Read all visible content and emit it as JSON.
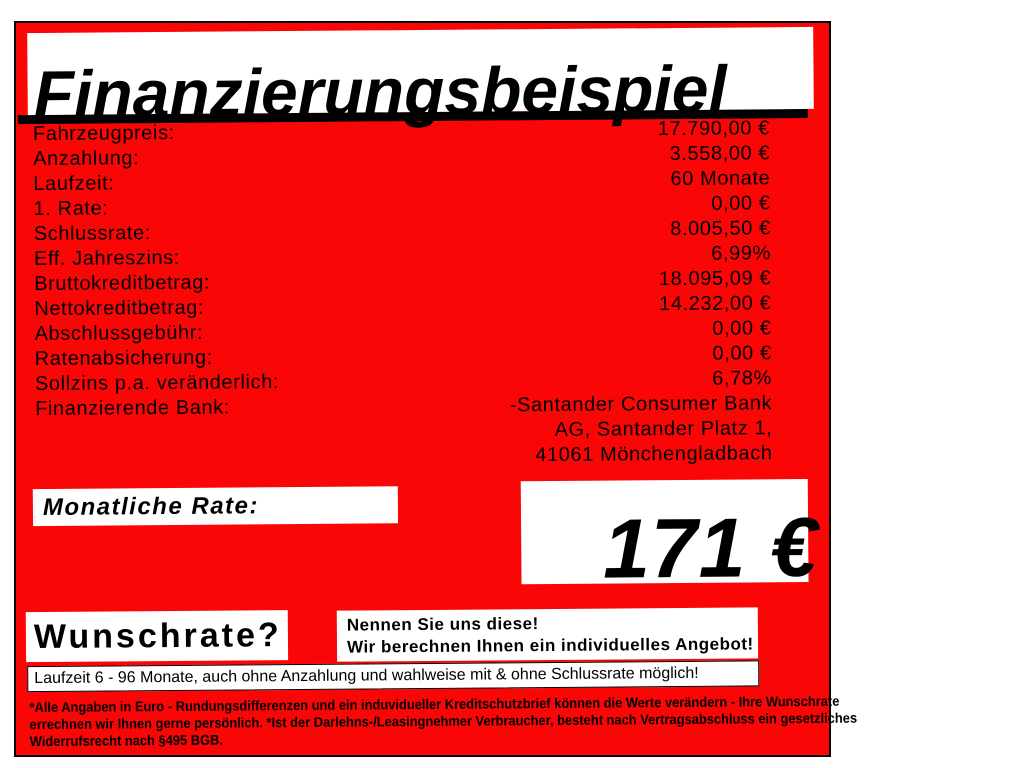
{
  "colors": {
    "red": "#fa0606",
    "black": "#000000",
    "white": "#ffffff"
  },
  "title": "Finanzierungsbeispiel",
  "finance_rows": [
    {
      "label": "Fahrzeugpreis:",
      "value": "17.790,00 €"
    },
    {
      "label": "Anzahlung:",
      "value": "3.558,00 €"
    },
    {
      "label": "Laufzeit:",
      "value": "60 Monate"
    },
    {
      "label": "1. Rate:",
      "value": "0,00 €"
    },
    {
      "label": "Schlussrate:",
      "value": "8.005,50 €"
    },
    {
      "label": "Eff. Jahreszins:",
      "value": "6,99%"
    },
    {
      "label": "Bruttokreditbetrag:",
      "value": "18.095,09 €"
    },
    {
      "label": "Nettokreditbetrag:",
      "value": "14.232,00 €"
    },
    {
      "label": "Abschlussgebühr:",
      "value": "0,00 €"
    },
    {
      "label": "Ratenabsicherung:",
      "value": "0,00 €"
    },
    {
      "label": "Sollzins p.a. veränderlich:",
      "value": "6,78%"
    },
    {
      "label": "Finanzierende Bank:",
      "value": "-Santander Consumer Bank\nAG, Santander Platz 1,\n41061 Mönchengladbach"
    }
  ],
  "monthly_rate": {
    "label": "Monatliche Rate:",
    "value": "171 €"
  },
  "wunschrate": {
    "headline": "Wunschrate?",
    "lines": [
      "Nennen Sie uns diese!",
      "Wir berechnen Ihnen ein individuelles Angebot!"
    ]
  },
  "term_note": "Laufzeit 6 - 96 Monate, auch ohne Anzahlung und wahlweise mit & ohne Schlussrate möglich!",
  "fine_print_lines": [
    "*Alle Angaben in Euro - Rundungsdifferenzen und ein induvidueller Kreditschutzbrief können die Werte verändern - Ihre Wunschrate",
    "errechnen wir Ihnen gerne persönlich. *Ist der Darlehns-/Leasingnehmer Verbraucher, besteht nach Vertragsabschluss ein gesetzliches",
    "Widerrufsrecht nach §495 BGB."
  ]
}
